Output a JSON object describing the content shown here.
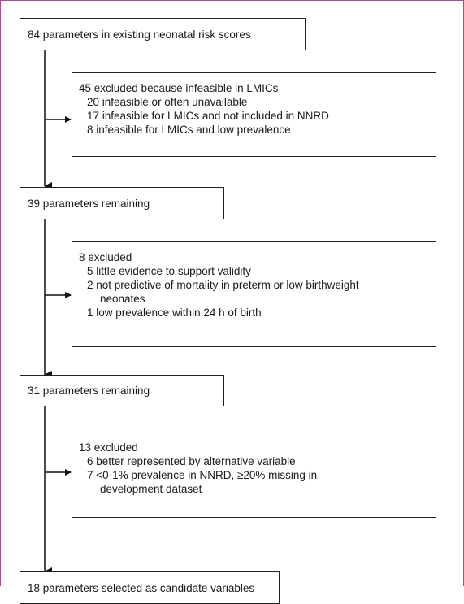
{
  "steps": {
    "start": "84 parameters in existing neonatal risk scores",
    "remain1": "39 parameters remaining",
    "remain2": "31 parameters remaining",
    "final": "18 parameters selected as candidate variables"
  },
  "exclusions": [
    {
      "title": "45 excluded because infeasible in LMICs",
      "items": [
        "20 infeasible or often unavailable",
        "17 infeasible for LMICs and not included in NNRD",
        " 8 infeasible for LMICs and low prevalence"
      ]
    },
    {
      "title": "8 excluded",
      "items": [
        "5 little evidence to support validity",
        "2 not predictive of mortality in preterm or low birthweight",
        "neonates",
        "1 low prevalence within 24 h of birth"
      ]
    },
    {
      "title": "13 excluded",
      "items": [
        "6 better represented by alternative variable",
        "7 <0·1% prevalence in NNRD, ≥20% missing in",
        "development dataset"
      ]
    }
  ]
}
